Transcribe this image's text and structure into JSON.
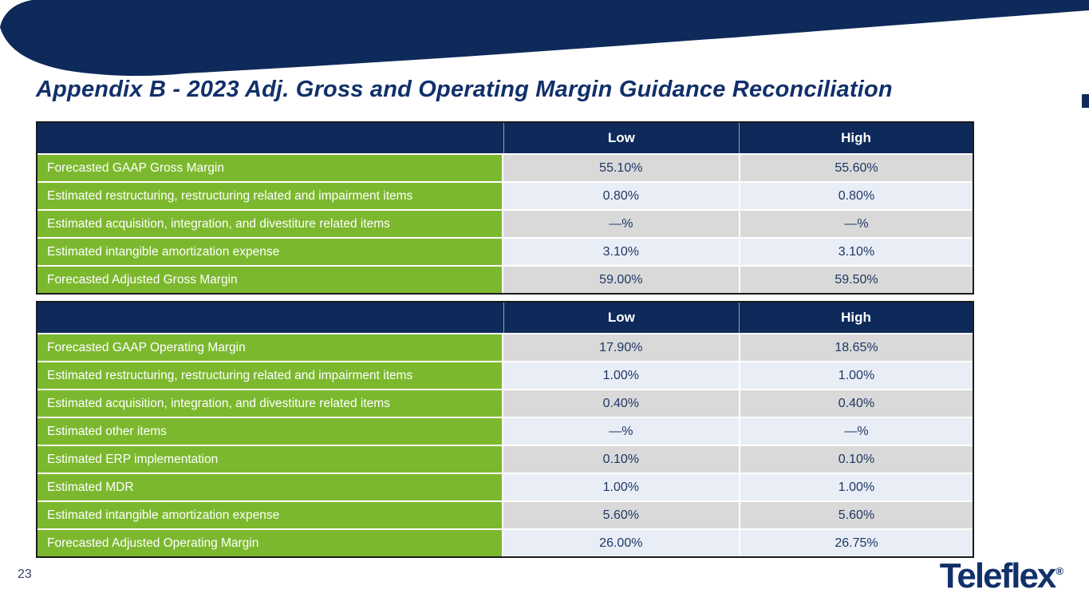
{
  "slide": {
    "title": "Appendix B - 2023 Adj. Gross and Operating Margin Guidance Reconciliation",
    "page_number": "23",
    "logo_text": "Teleflex",
    "logo_reg_mark": "®"
  },
  "colors": {
    "navy_band": "#0e2a5a",
    "title_navy": "#11306a",
    "green_label": "#7cb82e",
    "row_gray": "#d9d9d9",
    "row_light_blue": "#e9edf6",
    "value_text_navy": "#1f3864"
  },
  "tables": [
    {
      "name": "gross-margin-reconciliation",
      "columns": [
        "",
        "Low",
        "High"
      ],
      "rows": [
        {
          "label": "Forecasted GAAP Gross Margin",
          "low": "55.10%",
          "high": "55.60%"
        },
        {
          "label": "Estimated restructuring, restructuring related and impairment items",
          "low": "0.80%",
          "high": "0.80%"
        },
        {
          "label": "Estimated acquisition, integration, and divestiture related items",
          "low": "—%",
          "high": "—%"
        },
        {
          "label": "Estimated intangible amortization expense",
          "low": "3.10%",
          "high": "3.10%"
        },
        {
          "label": "Forecasted Adjusted Gross Margin",
          "low": "59.00%",
          "high": "59.50%"
        }
      ]
    },
    {
      "name": "operating-margin-reconciliation",
      "columns": [
        "",
        "Low",
        "High"
      ],
      "rows": [
        {
          "label": "Forecasted GAAP Operating Margin",
          "low": "17.90%",
          "high": "18.65%"
        },
        {
          "label": "Estimated restructuring, restructuring related and impairment items",
          "low": "1.00%",
          "high": "1.00%"
        },
        {
          "label": "Estimated acquisition, integration, and divestiture related items",
          "low": "0.40%",
          "high": "0.40%"
        },
        {
          "label": "Estimated other items",
          "low": "—%",
          "high": "—%"
        },
        {
          "label": "Estimated ERP implementation",
          "low": "0.10%",
          "high": "0.10%"
        },
        {
          "label": "Estimated MDR",
          "low": "1.00%",
          "high": "1.00%"
        },
        {
          "label": "Estimated intangible amortization expense",
          "low": "5.60%",
          "high": "5.60%"
        },
        {
          "label": "Forecasted Adjusted Operating Margin",
          "low": "26.00%",
          "high": "26.75%"
        }
      ]
    }
  ]
}
